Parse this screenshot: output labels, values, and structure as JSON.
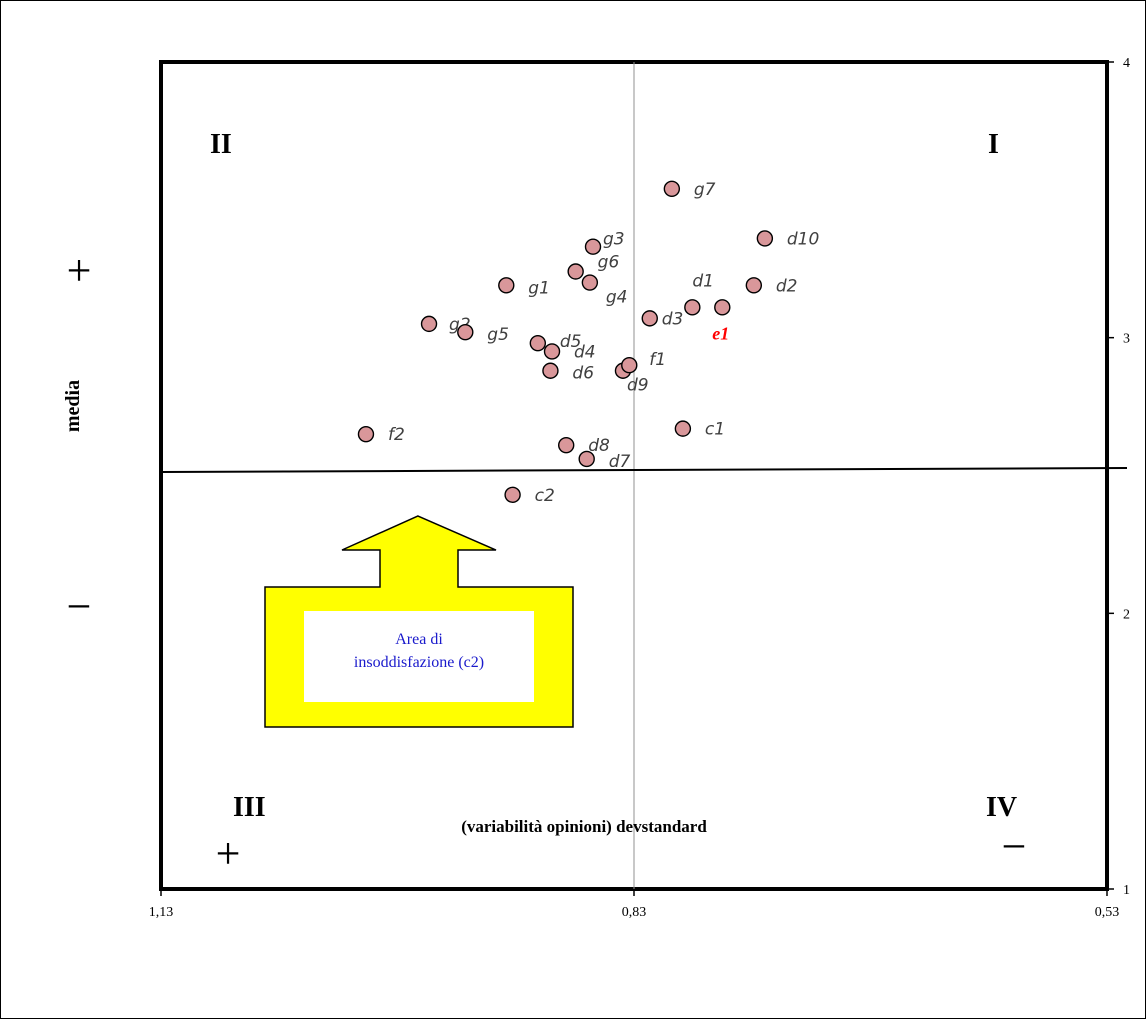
{
  "chart_data": {
    "type": "scatter",
    "title": "",
    "xlabel": "(variabilità  opinioni) devstandard",
    "ylabel": "media",
    "xlim": [
      1.13,
      0.53
    ],
    "x_reversed": true,
    "ylim": [
      1,
      4
    ],
    "x_ticks": [
      "1,13",
      "0,83",
      "0,53"
    ],
    "y_ticks": [
      "1",
      "2",
      "3",
      "4"
    ],
    "reference_lines": {
      "x": 0.83,
      "y": 2.52
    },
    "quadrants": [
      "I",
      "II",
      "III",
      "IV"
    ],
    "marker_color": "#d9979a",
    "highlight_color": "#ff0000",
    "points": [
      {
        "label": "g7",
        "x": 0.806,
        "y": 3.54
      },
      {
        "label": "g3",
        "x": 0.856,
        "y": 3.33
      },
      {
        "label": "d10",
        "x": 0.747,
        "y": 3.36
      },
      {
        "label": "g6",
        "x": 0.867,
        "y": 3.24
      },
      {
        "label": "g4",
        "x": 0.858,
        "y": 3.2
      },
      {
        "label": "g1",
        "x": 0.911,
        "y": 3.19
      },
      {
        "label": "d1",
        "x": 0.793,
        "y": 3.11
      },
      {
        "label": "d2",
        "x": 0.754,
        "y": 3.19
      },
      {
        "label": "e1",
        "x": 0.774,
        "y": 3.11,
        "highlight": true
      },
      {
        "label": "g2",
        "x": 0.96,
        "y": 3.05
      },
      {
        "label": "g5",
        "x": 0.937,
        "y": 3.02
      },
      {
        "label": "d3",
        "x": 0.82,
        "y": 3.07
      },
      {
        "label": "d5",
        "x": 0.891,
        "y": 2.98
      },
      {
        "label": "d4",
        "x": 0.882,
        "y": 2.95
      },
      {
        "label": "d6",
        "x": 0.883,
        "y": 2.88
      },
      {
        "label": "d9",
        "x": 0.837,
        "y": 2.88
      },
      {
        "label": "f1",
        "x": 0.833,
        "y": 2.9
      },
      {
        "label": "f2",
        "x": 1.0,
        "y": 2.65
      },
      {
        "label": "c1",
        "x": 0.799,
        "y": 2.67
      },
      {
        "label": "d8",
        "x": 0.873,
        "y": 2.61
      },
      {
        "label": "d7",
        "x": 0.86,
        "y": 2.56
      },
      {
        "label": "c2",
        "x": 0.907,
        "y": 2.43
      }
    ],
    "annotation": "Area di insoddisfazione (c2)"
  },
  "signs": {
    "y_high": "+",
    "y_low": "−",
    "x_high": "+",
    "x_low": "−"
  }
}
